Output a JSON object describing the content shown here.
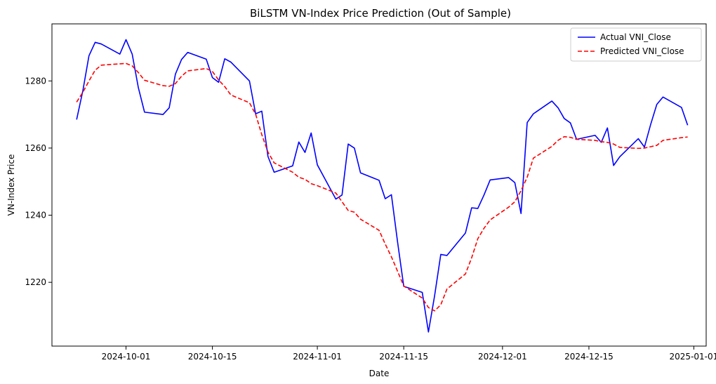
{
  "chart_data": {
    "type": "line",
    "title": "BiLSTM VN-Index Price Prediction (Out of Sample)",
    "xlabel": "Date",
    "ylabel": "VN-Index Price",
    "xlim": [
      "2024-09-19",
      "2025-01-03"
    ],
    "ylim": [
      1201,
      1297
    ],
    "x_ticks": [
      "2024-10-01",
      "2024-10-15",
      "2024-11-01",
      "2024-11-15",
      "2024-12-01",
      "2024-12-15",
      "2025-01-01"
    ],
    "y_ticks": [
      1220,
      1240,
      1260,
      1280
    ],
    "grid": false,
    "legend": "top-right",
    "series": [
      {
        "name": "Actual VNI_Close",
        "color": "#0000ff",
        "style": "solid",
        "points": [
          [
            "2024-09-23",
            1268.5
          ],
          [
            "2024-09-24",
            1277.0
          ],
          [
            "2024-09-25",
            1287.5
          ],
          [
            "2024-09-26",
            1291.5
          ],
          [
            "2024-09-27",
            1291.0
          ],
          [
            "2024-09-30",
            1288.0
          ],
          [
            "2024-10-01",
            1292.3
          ],
          [
            "2024-10-02",
            1288.0
          ],
          [
            "2024-10-03",
            1278.0
          ],
          [
            "2024-10-04",
            1270.7
          ],
          [
            "2024-10-07",
            1270.0
          ],
          [
            "2024-10-08",
            1272.0
          ],
          [
            "2024-10-09",
            1282.0
          ],
          [
            "2024-10-10",
            1286.4
          ],
          [
            "2024-10-11",
            1288.5
          ],
          [
            "2024-10-14",
            1286.5
          ],
          [
            "2024-10-15",
            1281.0
          ],
          [
            "2024-10-16",
            1279.6
          ],
          [
            "2024-10-17",
            1286.6
          ],
          [
            "2024-10-18",
            1285.6
          ],
          [
            "2024-10-21",
            1280.0
          ],
          [
            "2024-10-22",
            1270.2
          ],
          [
            "2024-10-23",
            1271.0
          ],
          [
            "2024-10-24",
            1257.5
          ],
          [
            "2024-10-25",
            1252.8
          ],
          [
            "2024-10-28",
            1254.7
          ],
          [
            "2024-10-29",
            1261.8
          ],
          [
            "2024-10-30",
            1258.7
          ],
          [
            "2024-10-31",
            1264.5
          ],
          [
            "2024-11-01",
            1255.0
          ],
          [
            "2024-11-04",
            1244.8
          ],
          [
            "2024-11-05",
            1246.0
          ],
          [
            "2024-11-06",
            1261.2
          ],
          [
            "2024-11-07",
            1260.0
          ],
          [
            "2024-11-08",
            1252.6
          ],
          [
            "2024-11-11",
            1250.4
          ],
          [
            "2024-11-12",
            1244.9
          ],
          [
            "2024-11-13",
            1246.1
          ],
          [
            "2024-11-14",
            1232.0
          ],
          [
            "2024-11-15",
            1218.8
          ],
          [
            "2024-11-18",
            1217.0
          ],
          [
            "2024-11-19",
            1205.2
          ],
          [
            "2024-11-20",
            1216.0
          ],
          [
            "2024-11-21",
            1228.3
          ],
          [
            "2024-11-22",
            1228.0
          ],
          [
            "2024-11-25",
            1234.7
          ],
          [
            "2024-11-26",
            1242.2
          ],
          [
            "2024-11-27",
            1242.0
          ],
          [
            "2024-11-28",
            1246.0
          ],
          [
            "2024-11-29",
            1250.5
          ],
          [
            "2024-12-02",
            1251.2
          ],
          [
            "2024-12-03",
            1249.7
          ],
          [
            "2024-12-04",
            1240.5
          ],
          [
            "2024-12-05",
            1267.6
          ],
          [
            "2024-12-06",
            1270.2
          ],
          [
            "2024-12-09",
            1274.0
          ],
          [
            "2024-12-10",
            1272.0
          ],
          [
            "2024-12-11",
            1268.8
          ],
          [
            "2024-12-12",
            1267.5
          ],
          [
            "2024-12-13",
            1262.6
          ],
          [
            "2024-12-16",
            1263.8
          ],
          [
            "2024-12-17",
            1261.7
          ],
          [
            "2024-12-18",
            1266.0
          ],
          [
            "2024-12-19",
            1254.8
          ],
          [
            "2024-12-20",
            1257.4
          ],
          [
            "2024-12-23",
            1262.8
          ],
          [
            "2024-12-24",
            1260.3
          ],
          [
            "2024-12-25",
            1267.0
          ],
          [
            "2024-12-26",
            1273.0
          ],
          [
            "2024-12-27",
            1275.2
          ],
          [
            "2024-12-30",
            1272.1
          ],
          [
            "2024-12-31",
            1266.8
          ]
        ]
      },
      {
        "name": "Predicted VNI_Close",
        "color": "#ff0000",
        "style": "dashed",
        "points": [
          [
            "2024-09-23",
            1273.7
          ],
          [
            "2024-09-24",
            1276.6
          ],
          [
            "2024-09-25",
            1280.0
          ],
          [
            "2024-09-26",
            1283.2
          ],
          [
            "2024-09-27",
            1284.7
          ],
          [
            "2024-09-30",
            1285.1
          ],
          [
            "2024-10-01",
            1285.2
          ],
          [
            "2024-10-02",
            1284.5
          ],
          [
            "2024-10-03",
            1282.5
          ],
          [
            "2024-10-04",
            1280.2
          ],
          [
            "2024-10-07",
            1278.6
          ],
          [
            "2024-10-08",
            1278.4
          ],
          [
            "2024-10-09",
            1279.2
          ],
          [
            "2024-10-10",
            1281.4
          ],
          [
            "2024-10-11",
            1283.0
          ],
          [
            "2024-10-14",
            1283.7
          ],
          [
            "2024-10-15",
            1282.8
          ],
          [
            "2024-10-16",
            1280.3
          ],
          [
            "2024-10-17",
            1278.3
          ],
          [
            "2024-10-18",
            1275.8
          ],
          [
            "2024-10-21",
            1273.5
          ],
          [
            "2024-10-22",
            1270.1
          ],
          [
            "2024-10-23",
            1264.0
          ],
          [
            "2024-10-24",
            1258.8
          ],
          [
            "2024-10-25",
            1255.6
          ],
          [
            "2024-10-28",
            1252.8
          ],
          [
            "2024-10-29",
            1251.3
          ],
          [
            "2024-10-30",
            1250.7
          ],
          [
            "2024-10-31",
            1249.4
          ],
          [
            "2024-11-01",
            1248.8
          ],
          [
            "2024-11-04",
            1246.6
          ],
          [
            "2024-11-05",
            1244.0
          ],
          [
            "2024-11-06",
            1241.4
          ],
          [
            "2024-11-07",
            1240.9
          ],
          [
            "2024-11-08",
            1238.8
          ],
          [
            "2024-11-11",
            1235.5
          ],
          [
            "2024-11-12",
            1231.4
          ],
          [
            "2024-11-13",
            1227.6
          ],
          [
            "2024-11-14",
            1223.3
          ],
          [
            "2024-11-15",
            1218.9
          ],
          [
            "2024-11-18",
            1215.3
          ],
          [
            "2024-11-19",
            1212.5
          ],
          [
            "2024-11-20",
            1211.5
          ],
          [
            "2024-11-21",
            1213.3
          ],
          [
            "2024-11-22",
            1218.0
          ],
          [
            "2024-11-25",
            1222.5
          ],
          [
            "2024-11-26",
            1227.3
          ],
          [
            "2024-11-27",
            1233.0
          ],
          [
            "2024-11-28",
            1236.1
          ],
          [
            "2024-11-29",
            1238.6
          ],
          [
            "2024-12-02",
            1242.4
          ],
          [
            "2024-12-03",
            1244.0
          ],
          [
            "2024-12-04",
            1247.3
          ],
          [
            "2024-12-05",
            1251.3
          ],
          [
            "2024-12-06",
            1257.0
          ],
          [
            "2024-12-09",
            1260.5
          ],
          [
            "2024-12-10",
            1262.3
          ],
          [
            "2024-12-11",
            1263.4
          ],
          [
            "2024-12-12",
            1263.2
          ],
          [
            "2024-12-13",
            1262.6
          ],
          [
            "2024-12-16",
            1262.3
          ],
          [
            "2024-12-17",
            1261.9
          ],
          [
            "2024-12-18",
            1261.7
          ],
          [
            "2024-12-19",
            1261.2
          ],
          [
            "2024-12-20",
            1260.2
          ],
          [
            "2024-12-23",
            1259.9
          ],
          [
            "2024-12-24",
            1260.0
          ],
          [
            "2024-12-25",
            1260.4
          ],
          [
            "2024-12-26",
            1260.8
          ],
          [
            "2024-12-27",
            1262.3
          ],
          [
            "2024-12-30",
            1263.1
          ],
          [
            "2024-12-31",
            1263.3
          ]
        ]
      }
    ]
  }
}
